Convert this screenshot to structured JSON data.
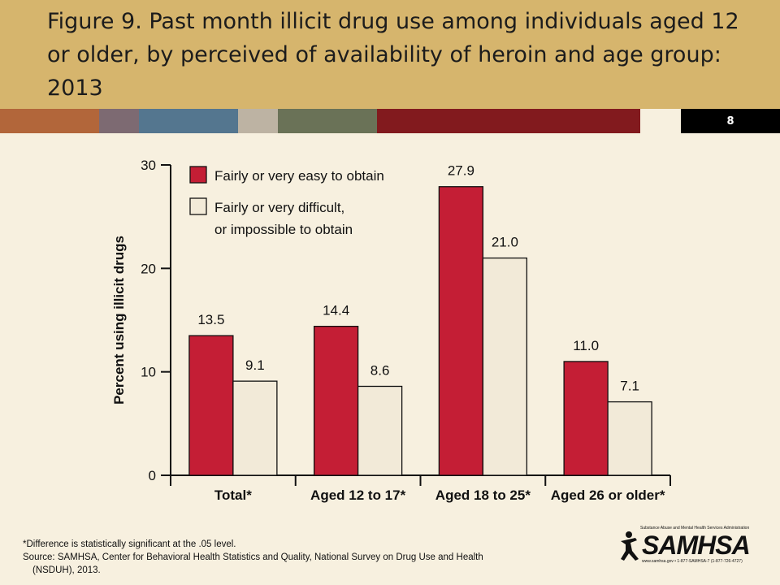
{
  "title": "Figure 9. Past month illicit drug use among individuals aged 12 or older, by perceived of availability of heroin and age group: 2013",
  "slide_number": "8",
  "colors": {
    "stripe": [
      "#b2663a",
      "#7d6a72",
      "#54768f",
      "#bdb3a3",
      "#6a7257",
      "#821a1e",
      "#f7f0df"
    ],
    "series": [
      "#c41e35",
      "#f2ead8"
    ]
  },
  "chart_data": {
    "type": "bar",
    "categories": [
      "Total*",
      "Aged 12 to 17*",
      "Aged 18 to 25*",
      "Aged 26 or older*"
    ],
    "series": [
      {
        "name": "Fairly or very easy to obtain",
        "values": [
          13.5,
          14.4,
          27.9,
          11.0
        ],
        "labels": [
          "13.5",
          "14.4",
          "27.9",
          "11.0"
        ]
      },
      {
        "name": "Fairly or very difficult, or impossible to obtain",
        "legend_lines": [
          "Fairly or very difficult,",
          "or impossible to obtain"
        ],
        "values": [
          9.1,
          8.6,
          21.0,
          7.1
        ],
        "labels": [
          "9.1",
          "8.6",
          "21.0",
          "7.1"
        ]
      }
    ],
    "ylabel": "Percent using illicit drugs",
    "ylim": [
      0,
      30
    ],
    "yticks": [
      0,
      10,
      20,
      30
    ],
    "legend": "top-left",
    "grid": false
  },
  "footnote": {
    "significance": "*Difference is statistically significant at the .05 level.",
    "source_line1": "Source: SAMHSA, Center for Behavioral Health Statistics and Quality, National Survey on Drug Use and Health",
    "source_line2": "(NSDUH), 2013."
  },
  "logo": {
    "agency": "Substance Abuse and Mental Health Services Administration",
    "wordmark": "SAMHSA",
    "contact": "www.samhsa.gov • 1-877-SAMHSA-7 (1-877-726-4727)"
  }
}
